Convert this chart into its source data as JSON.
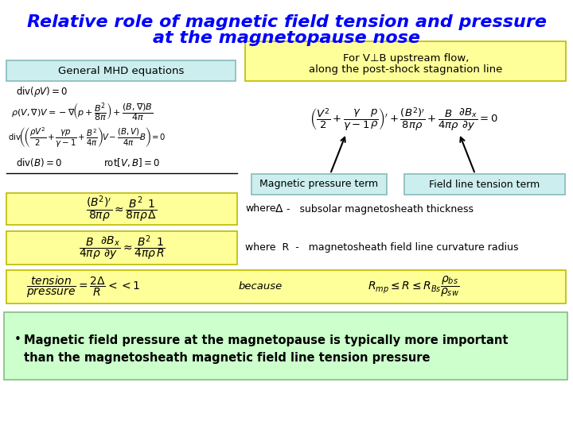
{
  "title_line1": "Relative role of magnetic field tension and pressure",
  "title_line2": "at the magnetopause nose",
  "title_color": "#0000FF",
  "bg_color": "#FFFFFF",
  "yellow_bg": "#FFFF99",
  "lightblue_bg": "#CCEEEE",
  "lightgreen_bg": "#CCFFCC",
  "general_box_label": "General MHD equations",
  "for_vb_line1": "For V⊥B upstream flow,",
  "for_vb_line2": "along the post-shock stagnation line",
  "mag_pressure_label": "Magnetic pressure term",
  "field_tension_label": "Field line tension term",
  "where1": "where",
  "sub_thick": "subsolar magnetosheath thickness",
  "where2": "where  R  -   magnetosheath field line curvature radius",
  "because": "because",
  "bullet_text_line1": "Magnetic field pressure at the magnetopause is typically more important",
  "bullet_text_line2": "than the magnetosheath magnetic field line tension pressure"
}
